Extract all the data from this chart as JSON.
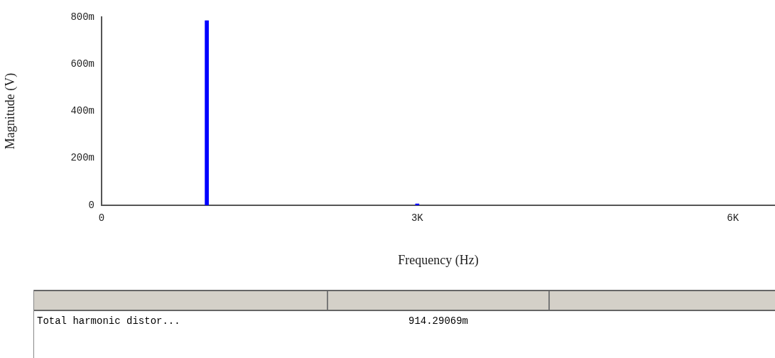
{
  "chart_data": {
    "type": "bar",
    "xlabel": "Frequency (Hz)",
    "ylabel": "Magnitude (V)",
    "x": [
      1000,
      3000
    ],
    "values": [
      785,
      6
    ],
    "color": "#0000ff",
    "xlim": [
      0,
      6400
    ],
    "xticks": [
      0,
      {
        "value": 3000,
        "label": "3K"
      },
      {
        "value": 6000,
        "label": "6K"
      }
    ],
    "ylim": [
      0,
      800
    ],
    "yticks": [
      0,
      {
        "value": 200,
        "label": "200m"
      },
      {
        "value": 400,
        "label": "400m"
      },
      {
        "value": 600,
        "label": "600m"
      },
      {
        "value": 800,
        "label": "800m"
      }
    ],
    "grid": false,
    "legend": false,
    "annotations": [
      "Total harmonic distor...",
      "914.29069m"
    ]
  }
}
